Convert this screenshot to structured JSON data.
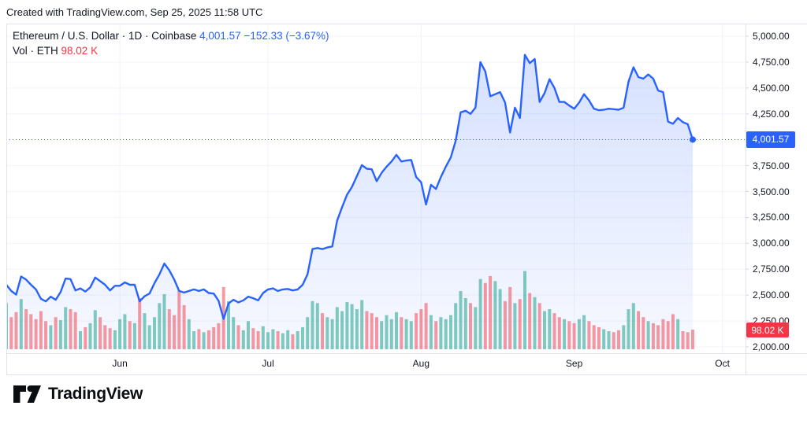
{
  "attribution": "Created with TradingView.com, Sep 25, 2025 11:58 UTC",
  "legend": {
    "symbol_title": "Ethereum / U.S. Dollar · 1D · Coinbase",
    "last_price": "4,001.57",
    "change": "−152.33 (−3.67%)",
    "volume_label": "Vol · ETH",
    "volume_value": "98.02 K"
  },
  "price_scale": {
    "badge_price": "4,001.57",
    "badge_volume": "98.02 K",
    "ticks": [
      {
        "value": 5000,
        "label": "5,000.00"
      },
      {
        "value": 4750,
        "label": "4,750.00"
      },
      {
        "value": 4500,
        "label": "4,500.00"
      },
      {
        "value": 4250,
        "label": "4,250.00"
      },
      {
        "value": 3750,
        "label": "3,750.00"
      },
      {
        "value": 3500,
        "label": "3,500.00"
      },
      {
        "value": 3250,
        "label": "3,250.00"
      },
      {
        "value": 3000,
        "label": "3,000.00"
      },
      {
        "value": 2750,
        "label": "2,750.00"
      },
      {
        "value": 2500,
        "label": "2,500.00"
      },
      {
        "value": 2250,
        "label": "2,250.00"
      },
      {
        "value": 2000,
        "label": "2,000.00"
      }
    ]
  },
  "time_scale": {
    "months": [
      {
        "label": "Jun",
        "day_index": 23
      },
      {
        "label": "Jul",
        "day_index": 53
      },
      {
        "label": "Aug",
        "day_index": 84
      },
      {
        "label": "Sep",
        "day_index": 115
      },
      {
        "label": "Oct",
        "day_index": 145
      }
    ]
  },
  "footer": {
    "brand": "TradingView"
  },
  "colors": {
    "accent": "#2962ff",
    "negative": "#f23645",
    "text": "#131722",
    "grid": "#f0f3fa",
    "border": "#e0e3eb",
    "vol_up": "rgba(8,153,129,0.5)",
    "vol_down": "rgba(242,54,69,0.5)",
    "area_top": "rgba(41,98,255,0.20)",
    "area_bottom": "rgba(41,98,255,0.04)"
  },
  "chart_data": {
    "type": "area",
    "title": "Ethereum / U.S. Dollar, 1D, Coinbase",
    "symbol": "ETH / USD",
    "exchange": "Coinbase",
    "interval": "1D",
    "start_date": "2025-05-09",
    "end_date": "2025-09-25",
    "last_price": 4001.57,
    "change": -152.33,
    "change_pct": -3.67,
    "last_volume_k": 98.02,
    "ylim": [
      2000,
      5000
    ],
    "y_ticks": [
      2000,
      2250,
      2500,
      2750,
      3000,
      3250,
      3500,
      3750,
      4000,
      4250,
      4500,
      4750,
      5000
    ],
    "grid": true,
    "legend_position": "top-left",
    "closes": [
      2600,
      2540,
      2505,
      2680,
      2650,
      2600,
      2555,
      2465,
      2440,
      2485,
      2455,
      2530,
      2660,
      2655,
      2545,
      2565,
      2535,
      2575,
      2670,
      2635,
      2600,
      2545,
      2590,
      2590,
      2623,
      2600,
      2600,
      2440,
      2490,
      2515,
      2615,
      2700,
      2805,
      2740,
      2650,
      2540,
      2525,
      2540,
      2555,
      2540,
      2555,
      2520,
      2515,
      2445,
      2270,
      2420,
      2455,
      2430,
      2450,
      2485,
      2470,
      2450,
      2520,
      2555,
      2565,
      2540,
      2555,
      2560,
      2545,
      2555,
      2600,
      2700,
      2945,
      2955,
      2945,
      2960,
      2970,
      3220,
      3350,
      3470,
      3545,
      3650,
      3755,
      3720,
      3715,
      3600,
      3680,
      3740,
      3790,
      3855,
      3790,
      3800,
      3805,
      3640,
      3590,
      3375,
      3565,
      3525,
      3640,
      3740,
      3830,
      3990,
      4265,
      4280,
      4250,
      4310,
      4750,
      4660,
      4420,
      4440,
      4460,
      4360,
      4070,
      4310,
      4210,
      4820,
      4740,
      4780,
      4365,
      4450,
      4585,
      4500,
      4365,
      4365,
      4330,
      4300,
      4360,
      4440,
      4380,
      4300,
      4285,
      4290,
      4300,
      4295,
      4290,
      4310,
      4560,
      4700,
      4605,
      4590,
      4630,
      4590,
      4475,
      4460,
      4175,
      4155,
      4210,
      4170,
      4150,
      4001.57
    ],
    "volume_k": [
      230,
      160,
      185,
      250,
      200,
      175,
      150,
      190,
      140,
      120,
      160,
      145,
      210,
      200,
      185,
      90,
      110,
      130,
      195,
      160,
      120,
      105,
      95,
      150,
      175,
      140,
      130,
      255,
      180,
      120,
      160,
      230,
      275,
      200,
      170,
      295,
      220,
      150,
      90,
      100,
      85,
      95,
      110,
      130,
      310,
      240,
      160,
      120,
      95,
      140,
      105,
      90,
      115,
      85,
      100,
      90,
      80,
      95,
      75,
      90,
      110,
      160,
      240,
      230,
      180,
      160,
      150,
      210,
      190,
      235,
      225,
      200,
      245,
      190,
      180,
      160,
      140,
      170,
      150,
      185,
      160,
      150,
      140,
      180,
      200,
      230,
      170,
      140,
      160,
      150,
      170,
      230,
      290,
      255,
      230,
      210,
      350,
      330,
      365,
      340,
      300,
      240,
      310,
      230,
      250,
      390,
      280,
      260,
      230,
      190,
      200,
      180,
      160,
      150,
      140,
      130,
      150,
      170,
      140,
      120,
      110,
      100,
      90,
      85,
      95,
      120,
      200,
      230,
      190,
      160,
      140,
      130,
      120,
      150,
      140,
      175,
      150,
      90,
      85,
      98.02
    ]
  }
}
